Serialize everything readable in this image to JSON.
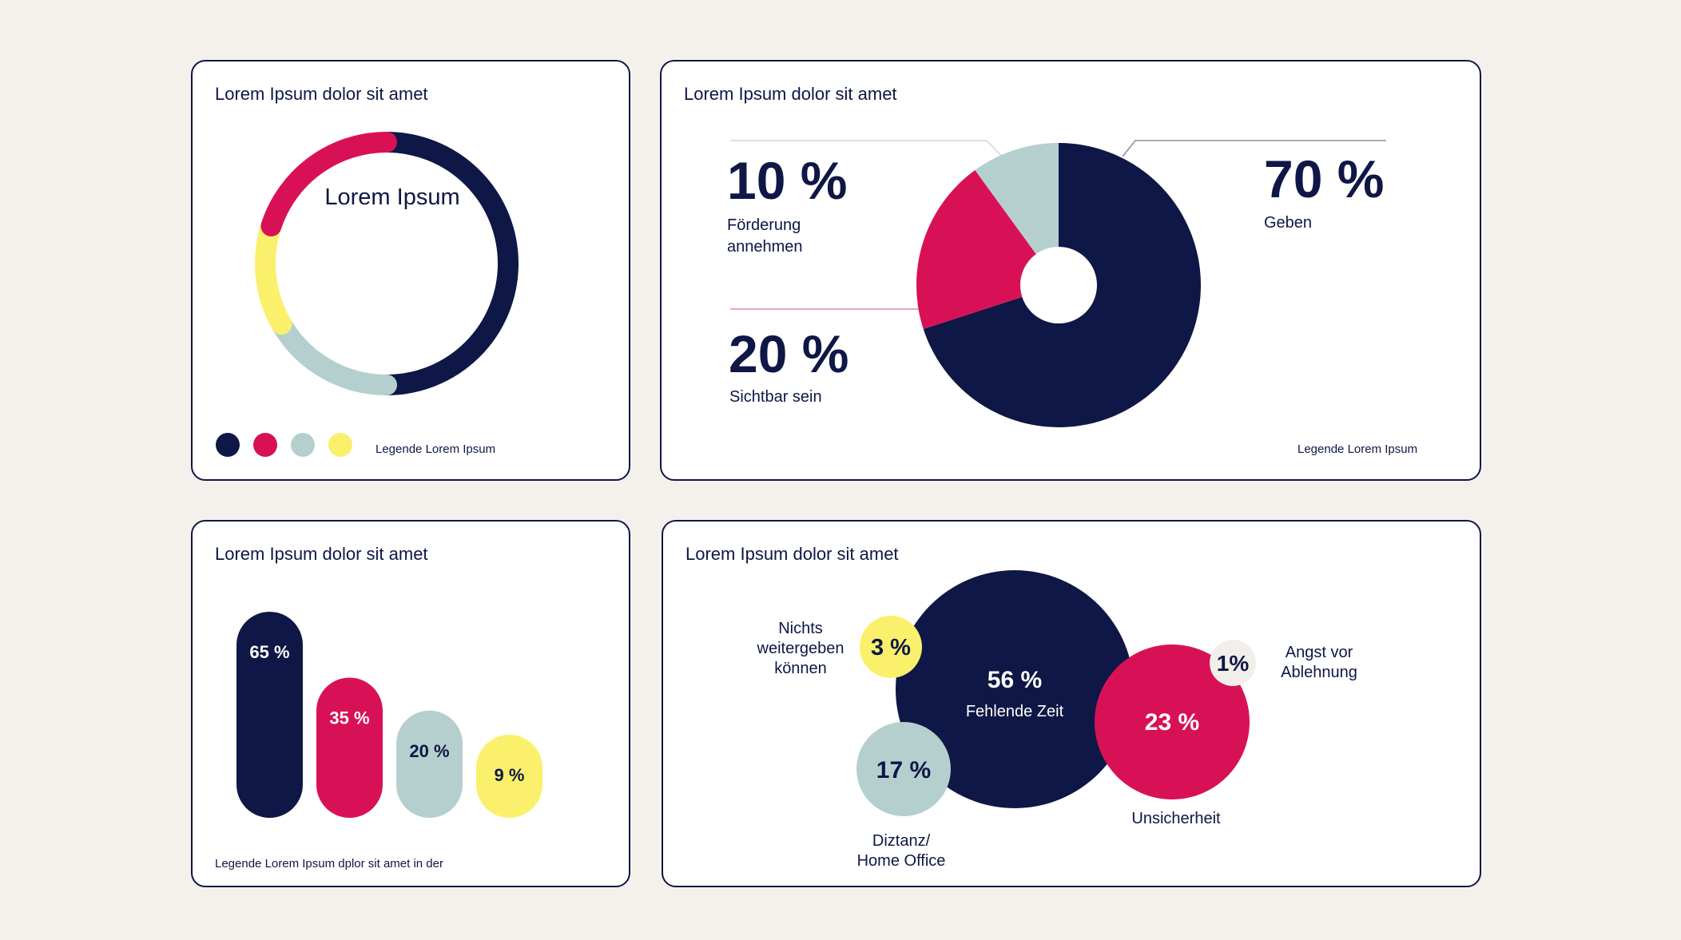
{
  "colors": {
    "navy": "#0e1745",
    "pink": "#d81157",
    "sage": "#b5cfcf",
    "yellow": "#fbf06b",
    "offwhite": "#f2efea"
  },
  "chart_data": [
    {
      "type": "donut-ring",
      "title": "Lorem Ipsum dolor sit amet",
      "center_label": "Lorem Ipsum",
      "legend_text": "Legende Lorem Ipsum",
      "legend_colors": [
        "navy",
        "pink",
        "sage",
        "yellow"
      ],
      "segments": [
        {
          "color": "navy",
          "start_deg": 0,
          "end_deg": 180
        },
        {
          "color": "sage",
          "start_deg": 180,
          "end_deg": 240
        },
        {
          "color": "yellow",
          "start_deg": 240,
          "end_deg": 288
        },
        {
          "color": "pink",
          "start_deg": 288,
          "end_deg": 360
        }
      ]
    },
    {
      "type": "pie",
      "title": "Lorem Ipsum dolor sit amet",
      "legend_text": "Legende Lorem Ipsum",
      "slices": [
        {
          "value": 70,
          "color": "navy",
          "label_value": "70 %",
          "label": "Geben"
        },
        {
          "value": 20,
          "color": "pink",
          "label_value": "20 %",
          "label": "Sichtbar sein"
        },
        {
          "value": 10,
          "color": "sage",
          "label_value": "10 %",
          "label_line1": "Förderung",
          "label_line2": "annehmen"
        }
      ]
    },
    {
      "type": "bar",
      "title": "Lorem Ipsum dolor sit amet",
      "legend_text": "Legende Lorem Ipsum  dplor sit amet in der",
      "bars": [
        {
          "value": 65,
          "label": "65 %",
          "color": "navy"
        },
        {
          "value": 35,
          "label": "35 %",
          "color": "pink"
        },
        {
          "value": 20,
          "label": "20 %",
          "color": "sage"
        },
        {
          "value": 9,
          "label": "9 %",
          "color": "yellow"
        }
      ]
    },
    {
      "type": "bubble",
      "title": "Lorem Ipsum dolor sit amet",
      "bubbles": [
        {
          "value": 56,
          "label": "56 %",
          "caption": "Fehlende Zeit",
          "color": "navy"
        },
        {
          "value": 23,
          "label": "23 %",
          "caption": "Unsicherheit",
          "color": "pink"
        },
        {
          "value": 17,
          "label": "17 %",
          "caption_line1": "Diztanz/",
          "caption_line2": "Home Office",
          "color": "sage"
        },
        {
          "value": 3,
          "label": "3 %",
          "caption_line1": "Nichts",
          "caption_line2": "weitergeben",
          "caption_line3": "können",
          "color": "yellow"
        },
        {
          "value": 1,
          "label": "1%",
          "caption_line1": "Angst vor",
          "caption_line2": "Ablehnung",
          "color": "offwhite"
        }
      ]
    }
  ]
}
